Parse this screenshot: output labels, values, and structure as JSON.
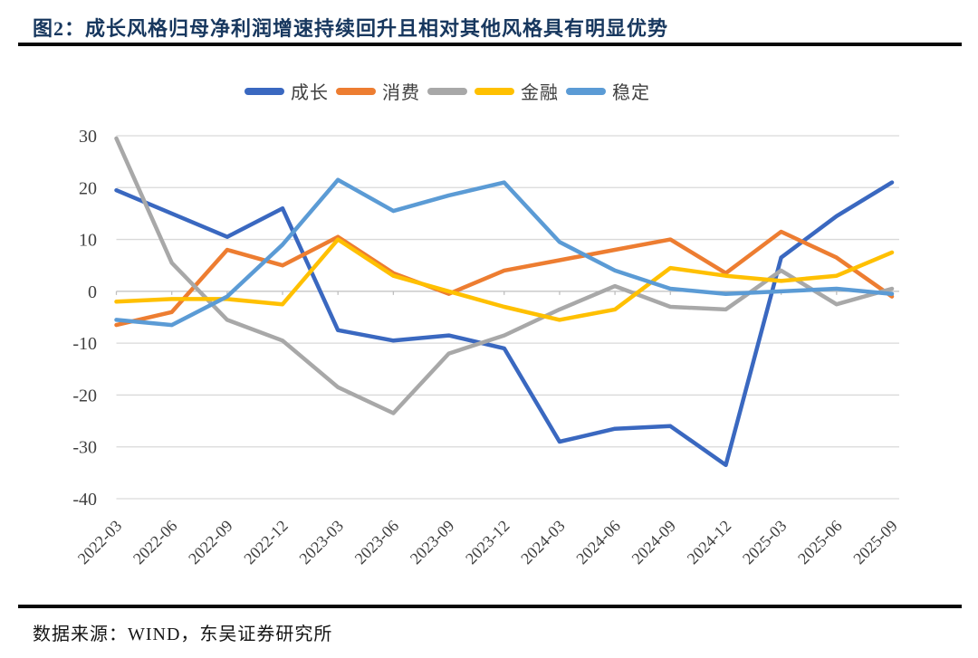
{
  "page": {
    "title": "图2：成长风格归母净利润增速持续回升且相对其他风格具有明显优势",
    "source_note": "数据来源：WIND，东吴证券研究所"
  },
  "chart_data": {
    "type": "line",
    "title": "",
    "xlabel": "",
    "ylabel": "",
    "categories": [
      "2022-03",
      "2022-06",
      "2022-09",
      "2022-12",
      "2023-03",
      "2023-06",
      "2023-09",
      "2023-12",
      "2024-03",
      "2024-06",
      "2024-09",
      "2024-12",
      "2025-03",
      "2025-06",
      "2025-09"
    ],
    "series": [
      {
        "name": "成长",
        "color": "#3A68C0",
        "values": [
          19.5,
          15,
          10.5,
          16,
          -7.5,
          -9.5,
          -8.5,
          -11,
          -29,
          -26.5,
          -26,
          -33.5,
          6.5,
          14.5,
          21
        ]
      },
      {
        "name": "消费",
        "color": "#ED7D31",
        "values": [
          -6.5,
          -4,
          8,
          5,
          10.5,
          3.5,
          -0.5,
          4,
          6,
          8,
          10,
          3.5,
          11.5,
          6.5,
          -1
        ]
      },
      {
        "name": "",
        "color": "#A8A8A8",
        "values": [
          29.5,
          5.5,
          -5.5,
          -9.5,
          -18.5,
          -23.5,
          -12,
          -8.5,
          -3.5,
          1,
          -3,
          -3.5,
          4,
          -2.5,
          0.5
        ]
      },
      {
        "name": "金融",
        "color": "#FFC000",
        "values": [
          -2,
          -1.5,
          -1.5,
          -2.5,
          10,
          3,
          0,
          -3,
          -5.5,
          -3.5,
          4.5,
          3,
          2,
          3,
          7.5
        ]
      },
      {
        "name": "稳定",
        "color": "#5B9BD5",
        "values": [
          -5.5,
          -6.5,
          -1,
          9,
          21.5,
          15.5,
          18.5,
          21,
          9.5,
          4,
          0.5,
          -0.5,
          0,
          0.5,
          -0.5
        ]
      }
    ],
    "ylim": [
      -40,
      30
    ],
    "y_tick_step": 10,
    "y_ticks": [
      30,
      20,
      10,
      0,
      -10,
      -20,
      -30,
      -40
    ],
    "grid": "horizontal",
    "legend_position": "top",
    "x_label_rotation": -45
  }
}
